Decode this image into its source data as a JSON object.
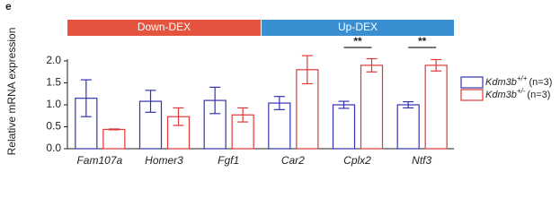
{
  "panel_label": "e",
  "chart_data": {
    "type": "bar",
    "y_label": "Relative mRNA expression",
    "categories": [
      "Fam107a",
      "Homer3",
      "Fgf1",
      "Car2",
      "Cplx2",
      "Ntf3"
    ],
    "groups": [
      {
        "label": "Down-DEX",
        "color": "#e4533d"
      },
      {
        "label": "Up-DEX",
        "color": "#3a8fd0"
      }
    ],
    "series": [
      {
        "name": "Kdm3b",
        "genotype": "+/+",
        "n_label": "(n=3)",
        "color": "#3434b0",
        "values": [
          1.15,
          1.08,
          1.1,
          1.04,
          1.0,
          1.0
        ],
        "errors": [
          0.42,
          0.25,
          0.3,
          0.15,
          0.08,
          0.07
        ]
      },
      {
        "name": "Kdm3b",
        "genotype": "+/-",
        "n_label": "(n=3)",
        "color": "#e0383a",
        "values": [
          0.44,
          0.73,
          0.77,
          1.8,
          1.9,
          1.9
        ],
        "errors": [
          0.01,
          0.2,
          0.16,
          0.32,
          0.15,
          0.13
        ],
        "significance": [
          null,
          null,
          null,
          null,
          "**",
          "**"
        ]
      }
    ],
    "ylim": [
      0,
      2.0
    ],
    "yticks": [
      {
        "value": 0,
        "label": "0.0"
      },
      0.5,
      {
        "value": 1,
        "label": "1.0"
      },
      1.5,
      {
        "value": 2,
        "label": "2.0"
      }
    ],
    "grid": false
  }
}
